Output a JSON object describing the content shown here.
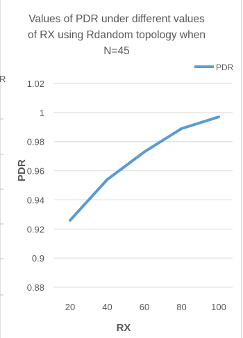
{
  "chart_data": {
    "type": "line",
    "title_lines": [
      "Values of PDR under different values",
      "of RX using Rdandom  topology when",
      "N=45"
    ],
    "xlabel": "RX",
    "ylabel": "PDR",
    "x": [
      20,
      40,
      60,
      80,
      100
    ],
    "x_tick_labels": [
      "20",
      "40",
      "60",
      "80",
      "100"
    ],
    "y_tick_labels": [
      "0.88",
      "0.9",
      "0.92",
      "0.94",
      "0.96",
      "0.98",
      "1",
      "1.02"
    ],
    "y_ticks": [
      0.88,
      0.9,
      0.92,
      0.94,
      0.96,
      0.98,
      1.0,
      1.02
    ],
    "ylim": [
      0.88,
      1.02
    ],
    "grid": true,
    "legend_position": "top-right",
    "series": [
      {
        "name": "PDR",
        "color": "#5b9bd5",
        "values": [
          0.926,
          0.954,
          0.973,
          0.989,
          0.997
        ]
      }
    ]
  },
  "left_edge_fragment": "R"
}
